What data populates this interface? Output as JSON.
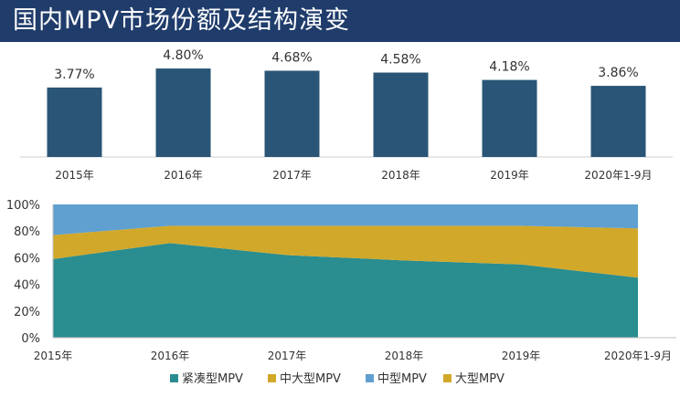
{
  "title": "国内MPV市场份额及结构演变",
  "chart_data": [
    {
      "type": "bar",
      "categories": [
        "2015年",
        "2016年",
        "2017年",
        "2018年",
        "2019年",
        "2020年1-9月"
      ],
      "values": [
        3.77,
        4.8,
        4.68,
        4.58,
        4.18,
        3.86
      ],
      "data_labels": [
        "3.77%",
        "4.80%",
        "4.68%",
        "4.58%",
        "4.18%",
        "3.86%"
      ],
      "unit": "%",
      "ylim": [
        0,
        5.2
      ],
      "grid": false,
      "color": "#2a5576"
    },
    {
      "type": "area",
      "stacked": true,
      "x": [
        "2015年",
        "2016年",
        "2017年",
        "2018年",
        "2019年",
        "2020年1-9月"
      ],
      "series": [
        {
          "name": "紧凑型MPV",
          "color": "#2a8d8f",
          "values": [
            59,
            71,
            62,
            58,
            55,
            45
          ]
        },
        {
          "name": "中大型MPV",
          "color": "#d1a82a",
          "values": [
            18,
            13,
            22,
            26,
            29,
            37
          ]
        },
        {
          "name": "中型MPV",
          "color": "#5fa0d0",
          "values": [
            23,
            16,
            16,
            16,
            16,
            18
          ]
        },
        {
          "name": "大型MPV",
          "color": "#d1a82a",
          "values": [
            0,
            0,
            0,
            0,
            0,
            0
          ]
        }
      ],
      "yticks": [
        "0%",
        "20%",
        "40%",
        "60%",
        "80%",
        "100%"
      ],
      "ylim": [
        0,
        100
      ],
      "legend_position": "bottom",
      "grid": false
    }
  ]
}
